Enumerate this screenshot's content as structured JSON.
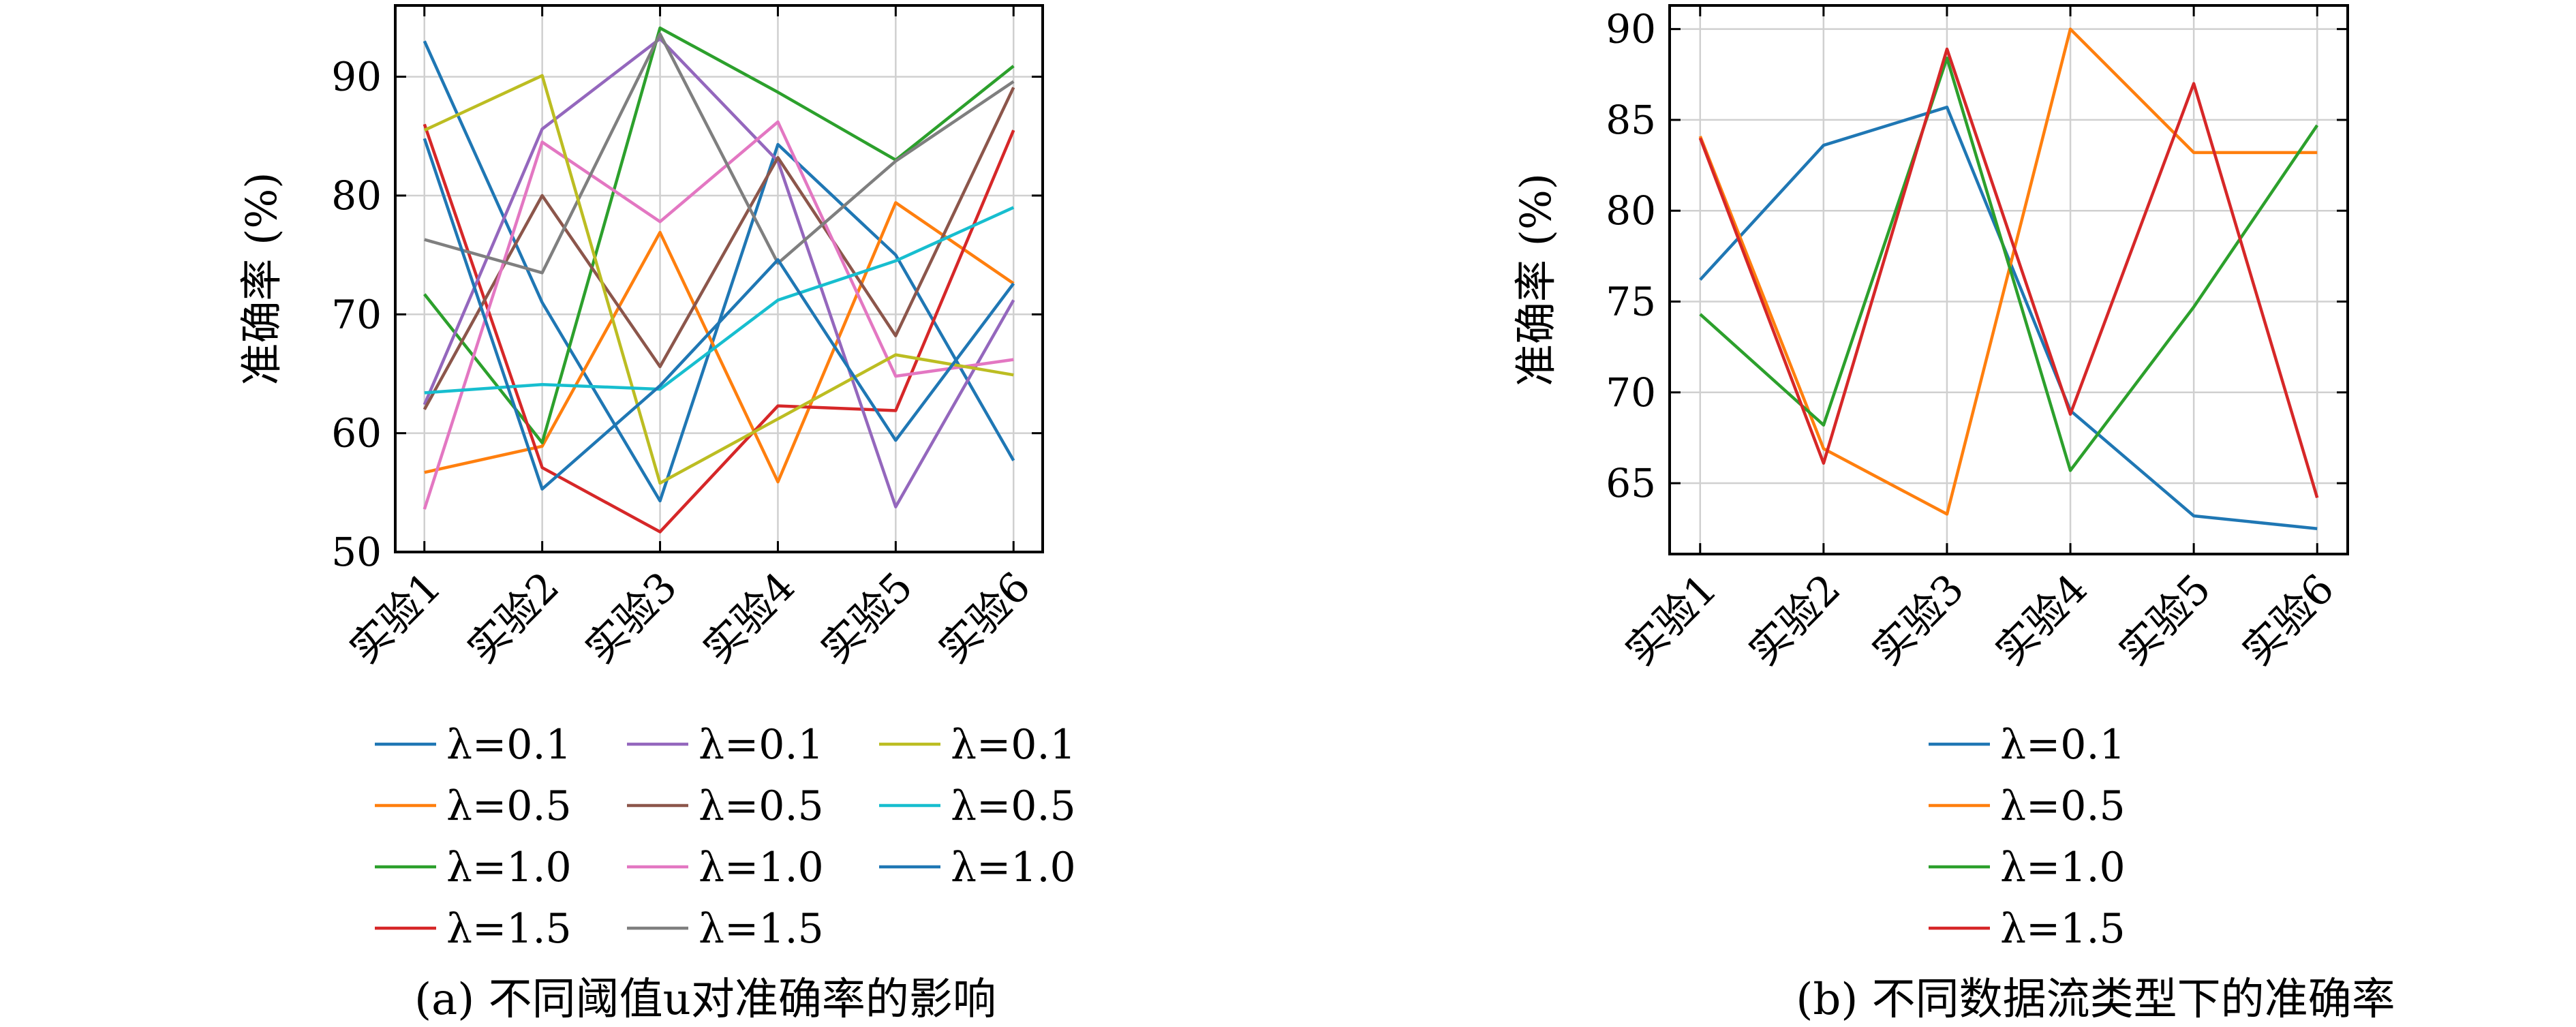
{
  "chart_data": [
    {
      "type": "line",
      "caption": "(a) 不同阈值u对准确率的影响",
      "ylabel": "准确率 (%)",
      "categories": [
        "实验1",
        "实验2",
        "实验3",
        "实验4",
        "实验5",
        "实验6"
      ],
      "ylim": [
        50,
        96
      ],
      "yticks": [
        50,
        60,
        70,
        80,
        90
      ],
      "grid": true,
      "legend": "below, 3 columns",
      "series": [
        {
          "name": "λ=0.1",
          "color": "#1f77b4",
          "values": [
            93.0,
            71.0,
            54.3,
            84.3,
            75.0,
            57.7
          ]
        },
        {
          "name": "λ=0.5",
          "color": "#ff7f0e",
          "values": [
            56.7,
            58.9,
            76.9,
            55.9,
            79.4,
            72.6
          ]
        },
        {
          "name": "λ=1.0",
          "color": "#2ca02c",
          "values": [
            71.7,
            59.2,
            94.1,
            88.7,
            83.0,
            90.9
          ]
        },
        {
          "name": "λ=1.5",
          "color": "#d62728",
          "values": [
            86.0,
            57.1,
            51.7,
            62.3,
            61.9,
            85.5
          ]
        },
        {
          "name": "λ=0.1",
          "color": "#9467bd",
          "values": [
            62.4,
            85.6,
            93.2,
            82.9,
            53.8,
            71.2
          ]
        },
        {
          "name": "λ=0.5",
          "color": "#8c564b",
          "values": [
            62.0,
            80.0,
            65.6,
            83.2,
            68.2,
            89.1
          ]
        },
        {
          "name": "λ=1.0",
          "color": "#e377c2",
          "values": [
            53.6,
            84.5,
            77.8,
            86.2,
            64.8,
            66.2
          ]
        },
        {
          "name": "λ=1.5",
          "color": "#7f7f7f",
          "values": [
            76.3,
            73.5,
            93.6,
            74.3,
            82.9,
            89.6
          ]
        },
        {
          "name": "λ=0.1",
          "color": "#bcbd22",
          "values": [
            85.5,
            90.1,
            55.8,
            61.2,
            66.6,
            64.9
          ]
        },
        {
          "name": "λ=0.5",
          "color": "#17becf",
          "values": [
            63.4,
            64.1,
            63.7,
            71.2,
            74.5,
            79.0
          ]
        },
        {
          "name": "λ=1.0",
          "color": "#1f77b4",
          "values": [
            84.8,
            55.3,
            64.0,
            74.6,
            59.4,
            72.6
          ]
        }
      ]
    },
    {
      "type": "line",
      "caption": "(b) 不同数据流类型下的准确率",
      "ylabel": "准确率 (%)",
      "categories": [
        "实验1",
        "实验2",
        "实验3",
        "实验4",
        "实验5",
        "实验6"
      ],
      "ylim": [
        61.1,
        91.3
      ],
      "yticks": [
        65,
        70,
        75,
        80,
        85,
        90
      ],
      "grid": true,
      "legend": "below, 1 column",
      "series": [
        {
          "name": "λ=0.1",
          "color": "#1f77b4",
          "values": [
            76.2,
            83.6,
            85.7,
            69.0,
            63.2,
            62.5
          ]
        },
        {
          "name": "λ=0.5",
          "color": "#ff7f0e",
          "values": [
            84.1,
            66.9,
            63.3,
            90.0,
            83.2,
            83.2
          ]
        },
        {
          "name": "λ=1.0",
          "color": "#2ca02c",
          "values": [
            74.3,
            68.2,
            88.4,
            65.7,
            74.7,
            84.7
          ]
        },
        {
          "name": "λ=1.5",
          "color": "#d62728",
          "values": [
            84.0,
            66.1,
            88.9,
            68.8,
            87.0,
            64.2
          ]
        }
      ]
    }
  ]
}
